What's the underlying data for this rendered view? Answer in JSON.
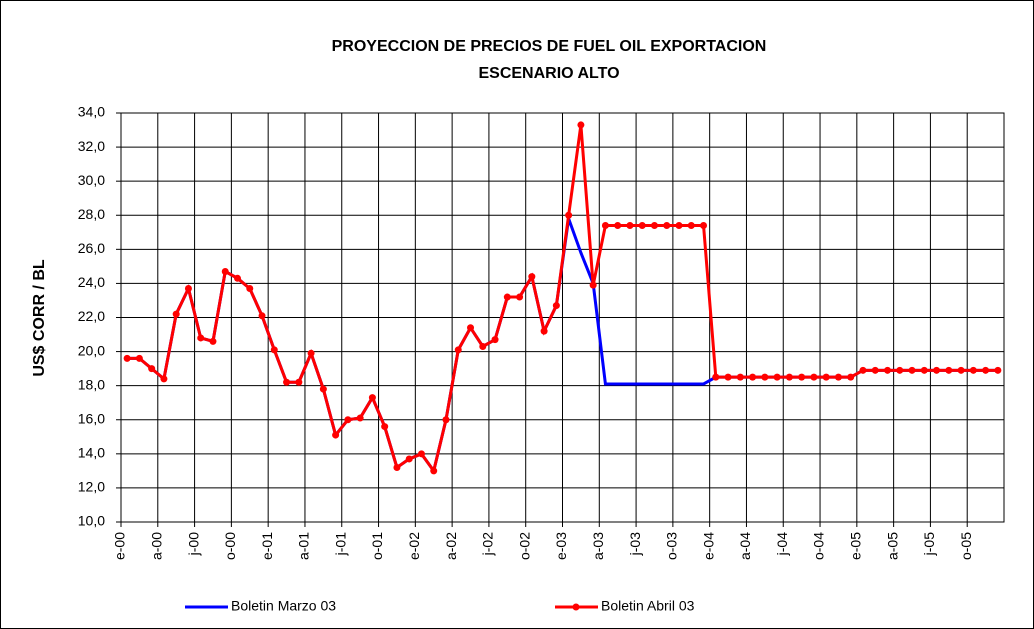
{
  "chart_data": {
    "type": "line",
    "title": "PROYECCION DE PRECIOS DE FUEL OIL EXPORTACION",
    "subtitle": "ESCENARIO ALTO",
    "y_label": "US$ CORR / BL",
    "categories": [
      "e-00",
      null,
      null,
      "a-00",
      null,
      null,
      "j-00",
      null,
      null,
      "o-00",
      null,
      null,
      "e-01",
      null,
      null,
      "a-01",
      null,
      null,
      "j-01",
      null,
      null,
      "o-01",
      null,
      null,
      "e-02",
      null,
      null,
      "a-02",
      null,
      null,
      "j-02",
      null,
      null,
      "o-02",
      null,
      null,
      "e-03",
      null,
      null,
      "a-03",
      null,
      null,
      "j-03",
      null,
      null,
      "o-03",
      null,
      null,
      "e-04",
      null,
      null,
      "a-04",
      null,
      null,
      "j-04",
      null,
      null,
      "o-04",
      null,
      null,
      "e-05",
      null,
      null,
      "a-05",
      null,
      null,
      "j-05",
      null,
      null,
      "o-05",
      null,
      null
    ],
    "series": [
      {
        "name": "Boletin Marzo 03",
        "color": "#0000ff",
        "markers": false,
        "values": [
          19.6,
          19.6,
          19.0,
          18.4,
          22.2,
          23.7,
          20.8,
          20.6,
          24.7,
          24.3,
          23.7,
          22.1,
          20.1,
          18.2,
          18.2,
          19.9,
          17.8,
          15.1,
          16.0,
          16.1,
          17.3,
          15.6,
          13.2,
          13.7,
          14.0,
          13.0,
          16.0,
          20.1,
          21.4,
          20.3,
          20.7,
          23.2,
          23.2,
          24.4,
          21.2,
          22.7,
          27.8,
          25.8,
          24.0,
          18.1,
          18.1,
          18.1,
          18.1,
          18.1,
          18.1,
          18.1,
          18.1,
          18.1,
          18.5,
          18.5,
          18.5,
          18.5,
          18.5,
          18.5,
          18.5,
          18.5,
          18.5,
          18.5,
          18.5,
          18.5,
          18.9,
          18.9,
          18.9,
          18.9,
          18.9,
          18.9,
          18.9,
          18.9,
          18.9,
          18.9,
          18.9,
          18.9
        ]
      },
      {
        "name": "Boletin Abril 03",
        "color": "#ff0000",
        "markers": true,
        "values": [
          19.6,
          19.6,
          19.0,
          18.4,
          22.2,
          23.7,
          20.8,
          20.6,
          24.7,
          24.3,
          23.7,
          22.1,
          20.1,
          18.2,
          18.2,
          19.9,
          17.8,
          15.1,
          16.0,
          16.1,
          17.3,
          15.6,
          13.2,
          13.7,
          14.0,
          13.0,
          16.0,
          20.1,
          21.4,
          20.3,
          20.7,
          23.2,
          23.2,
          24.4,
          21.2,
          22.7,
          28.0,
          33.3,
          23.9,
          27.4,
          27.4,
          27.4,
          27.4,
          27.4,
          27.4,
          27.4,
          27.4,
          27.4,
          18.5,
          18.5,
          18.5,
          18.5,
          18.5,
          18.5,
          18.5,
          18.5,
          18.5,
          18.5,
          18.5,
          18.5,
          18.9,
          18.9,
          18.9,
          18.9,
          18.9,
          18.9,
          18.9,
          18.9,
          18.9,
          18.9,
          18.9,
          18.9
        ]
      }
    ],
    "ylim": [
      10,
      34
    ],
    "yticks": [
      {
        "value": 10,
        "label": "10,0"
      },
      {
        "value": 12,
        "label": "12,0"
      },
      {
        "value": 14,
        "label": "14,0"
      },
      {
        "value": 16,
        "label": "16,0"
      },
      {
        "value": 18,
        "label": "18,0"
      },
      {
        "value": 20,
        "label": "20,0"
      },
      {
        "value": 22,
        "label": "22,0"
      },
      {
        "value": 24,
        "label": "24,0"
      },
      {
        "value": 26,
        "label": "26,0"
      },
      {
        "value": 28,
        "label": "28,0"
      },
      {
        "value": 30,
        "label": "30,0"
      },
      {
        "value": 32,
        "label": "32,0"
      },
      {
        "value": 34,
        "label": "34,0"
      }
    ],
    "grid": true,
    "legend": "bottom"
  }
}
